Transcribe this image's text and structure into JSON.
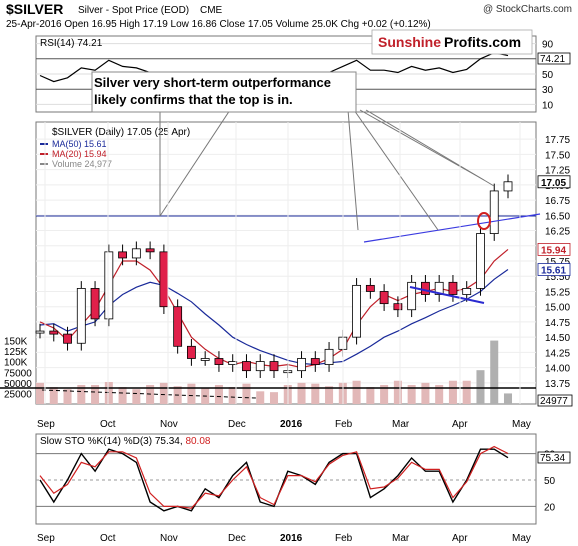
{
  "header": {
    "symbol": "$SILVER",
    "name": "Silver - Spot Price (EOD)",
    "exchange": "CME",
    "copyright": "@ StockCharts.com",
    "quote_line": "25-Apr-2016   Open 16.95   High 17.19   Low 16.86   Close 17.05   Volume 25.0K   Chg +0.02 (+0.12%)"
  },
  "brand": {
    "part1": "Sunshine",
    "part2": "Profits.com"
  },
  "annotation": "Silver very short-term outperformance likely confirms that the top is in.",
  "rsi_panel": {
    "label": "RSI(14) 74.21",
    "current": 74.21,
    "current_label": "74.21",
    "ticks": [
      "90",
      "70",
      "50",
      "30",
      "10"
    ]
  },
  "price_panel": {
    "title": "$SILVER (Daily) 17.05 (25 Apr)",
    "legend": [
      {
        "label": "MA(50) 15.61",
        "color": "#1a2a9a"
      },
      {
        "label": "MA(20) 15.94",
        "color": "#c0202a"
      },
      {
        "label": "Volume 24,977",
        "color": "#888888"
      }
    ],
    "price_ticks": [
      "17.75",
      "17.50",
      "17.25",
      "17.00",
      "16.75",
      "16.50",
      "16.25",
      "16.00",
      "15.75",
      "15.50",
      "15.25",
      "15.00",
      "14.75",
      "14.50",
      "14.25",
      "14.00",
      "13.75"
    ],
    "tags": [
      {
        "label": "17.05",
        "value": 17.05,
        "color": "#000000"
      },
      {
        "label": "15.94",
        "value": 15.94,
        "color": "#c0202a"
      },
      {
        "label": "15.61",
        "value": 15.61,
        "color": "#1a2a9a"
      }
    ],
    "volume_ticks": [
      "150K",
      "125K",
      "100K",
      "75000",
      "50000",
      "25000"
    ],
    "volume_tag": "24977"
  },
  "sto_panel": {
    "label_prefix": "Slow STO %K(14) %D(3) 75.34, ",
    "label_d": "80.08",
    "ticks": [
      "80",
      "50",
      "20"
    ],
    "current_label": "75.34"
  },
  "x_labels": [
    "Sep",
    "Oct",
    "Nov",
    "Dec",
    "2016",
    "Feb",
    "Mar",
    "Apr",
    "May"
  ],
  "chart_data": {
    "type": "candlestick",
    "title": "$SILVER (Daily) 17.05 (25 Apr)",
    "x": [
      "2015-09-01",
      "2015-09-08",
      "2015-09-15",
      "2015-09-22",
      "2015-09-29",
      "2015-10-06",
      "2015-10-13",
      "2015-10-20",
      "2015-10-27",
      "2015-11-03",
      "2015-11-10",
      "2015-11-17",
      "2015-11-24",
      "2015-12-01",
      "2015-12-08",
      "2015-12-15",
      "2015-12-22",
      "2015-12-29",
      "2016-01-05",
      "2016-01-12",
      "2016-01-19",
      "2016-01-26",
      "2016-02-02",
      "2016-02-09",
      "2016-02-16",
      "2016-02-23",
      "2016-03-01",
      "2016-03-08",
      "2016-03-15",
      "2016-03-22",
      "2016-03-29",
      "2016-04-05",
      "2016-04-12",
      "2016-04-19",
      "2016-04-25"
    ],
    "close": [
      14.6,
      14.55,
      14.4,
      15.3,
      14.8,
      15.9,
      15.8,
      15.95,
      15.9,
      15.0,
      14.35,
      14.15,
      14.15,
      14.05,
      14.1,
      13.95,
      14.1,
      13.95,
      13.95,
      14.15,
      14.05,
      14.3,
      14.5,
      15.35,
      15.25,
      15.05,
      14.95,
      15.4,
      15.2,
      15.4,
      15.2,
      15.3,
      16.2,
      16.9,
      17.05
    ],
    "ma50": [
      14.7,
      14.72,
      14.6,
      14.68,
      14.75,
      15.02,
      15.2,
      15.32,
      15.4,
      15.35,
      15.22,
      15.08,
      14.88,
      14.7,
      14.5,
      14.38,
      14.28,
      14.2,
      14.12,
      14.07,
      14.05,
      14.08,
      14.1,
      14.22,
      14.35,
      14.5,
      14.6,
      14.72,
      14.82,
      14.93,
      15.02,
      15.12,
      15.25,
      15.45,
      15.61
    ],
    "ma20": [
      14.75,
      14.65,
      14.45,
      14.7,
      14.95,
      15.35,
      15.75,
      15.75,
      15.6,
      15.3,
      14.9,
      14.5,
      14.3,
      14.15,
      14.05,
      14.1,
      14.05,
      14.02,
      14.05,
      14.0,
      14.05,
      14.15,
      14.3,
      14.7,
      15.0,
      15.2,
      15.1,
      15.2,
      15.25,
      15.3,
      15.25,
      15.3,
      15.45,
      15.75,
      15.94
    ],
    "volume": [
      50000,
      40000,
      35000,
      45000,
      45000,
      52000,
      40000,
      35000,
      45000,
      50000,
      42000,
      48000,
      38000,
      45000,
      40000,
      48000,
      30000,
      28000,
      45000,
      50000,
      48000,
      42000,
      50000,
      55000,
      40000,
      45000,
      55000,
      45000,
      50000,
      45000,
      55000,
      55000,
      80000,
      150000,
      24977
    ],
    "rsi": [
      48,
      40,
      45,
      58,
      55,
      68,
      60,
      58,
      52,
      40,
      30,
      28,
      32,
      30,
      40,
      42,
      45,
      40,
      42,
      48,
      46,
      52,
      60,
      68,
      55,
      55,
      52,
      60,
      55,
      58,
      52,
      56,
      70,
      78,
      74.21
    ],
    "sto_k": [
      50,
      25,
      50,
      80,
      60,
      85,
      80,
      70,
      25,
      15,
      20,
      15,
      40,
      30,
      55,
      70,
      25,
      20,
      60,
      55,
      45,
      70,
      80,
      80,
      30,
      40,
      55,
      75,
      60,
      60,
      25,
      50,
      85,
      85,
      75.34
    ],
    "sto_d": [
      55,
      35,
      45,
      70,
      65,
      82,
      82,
      75,
      35,
      20,
      20,
      18,
      35,
      32,
      50,
      65,
      30,
      22,
      55,
      55,
      48,
      68,
      78,
      82,
      40,
      42,
      52,
      70,
      62,
      62,
      30,
      48,
      80,
      88,
      80.08
    ],
    "ylim": [
      13.6,
      17.9
    ]
  }
}
